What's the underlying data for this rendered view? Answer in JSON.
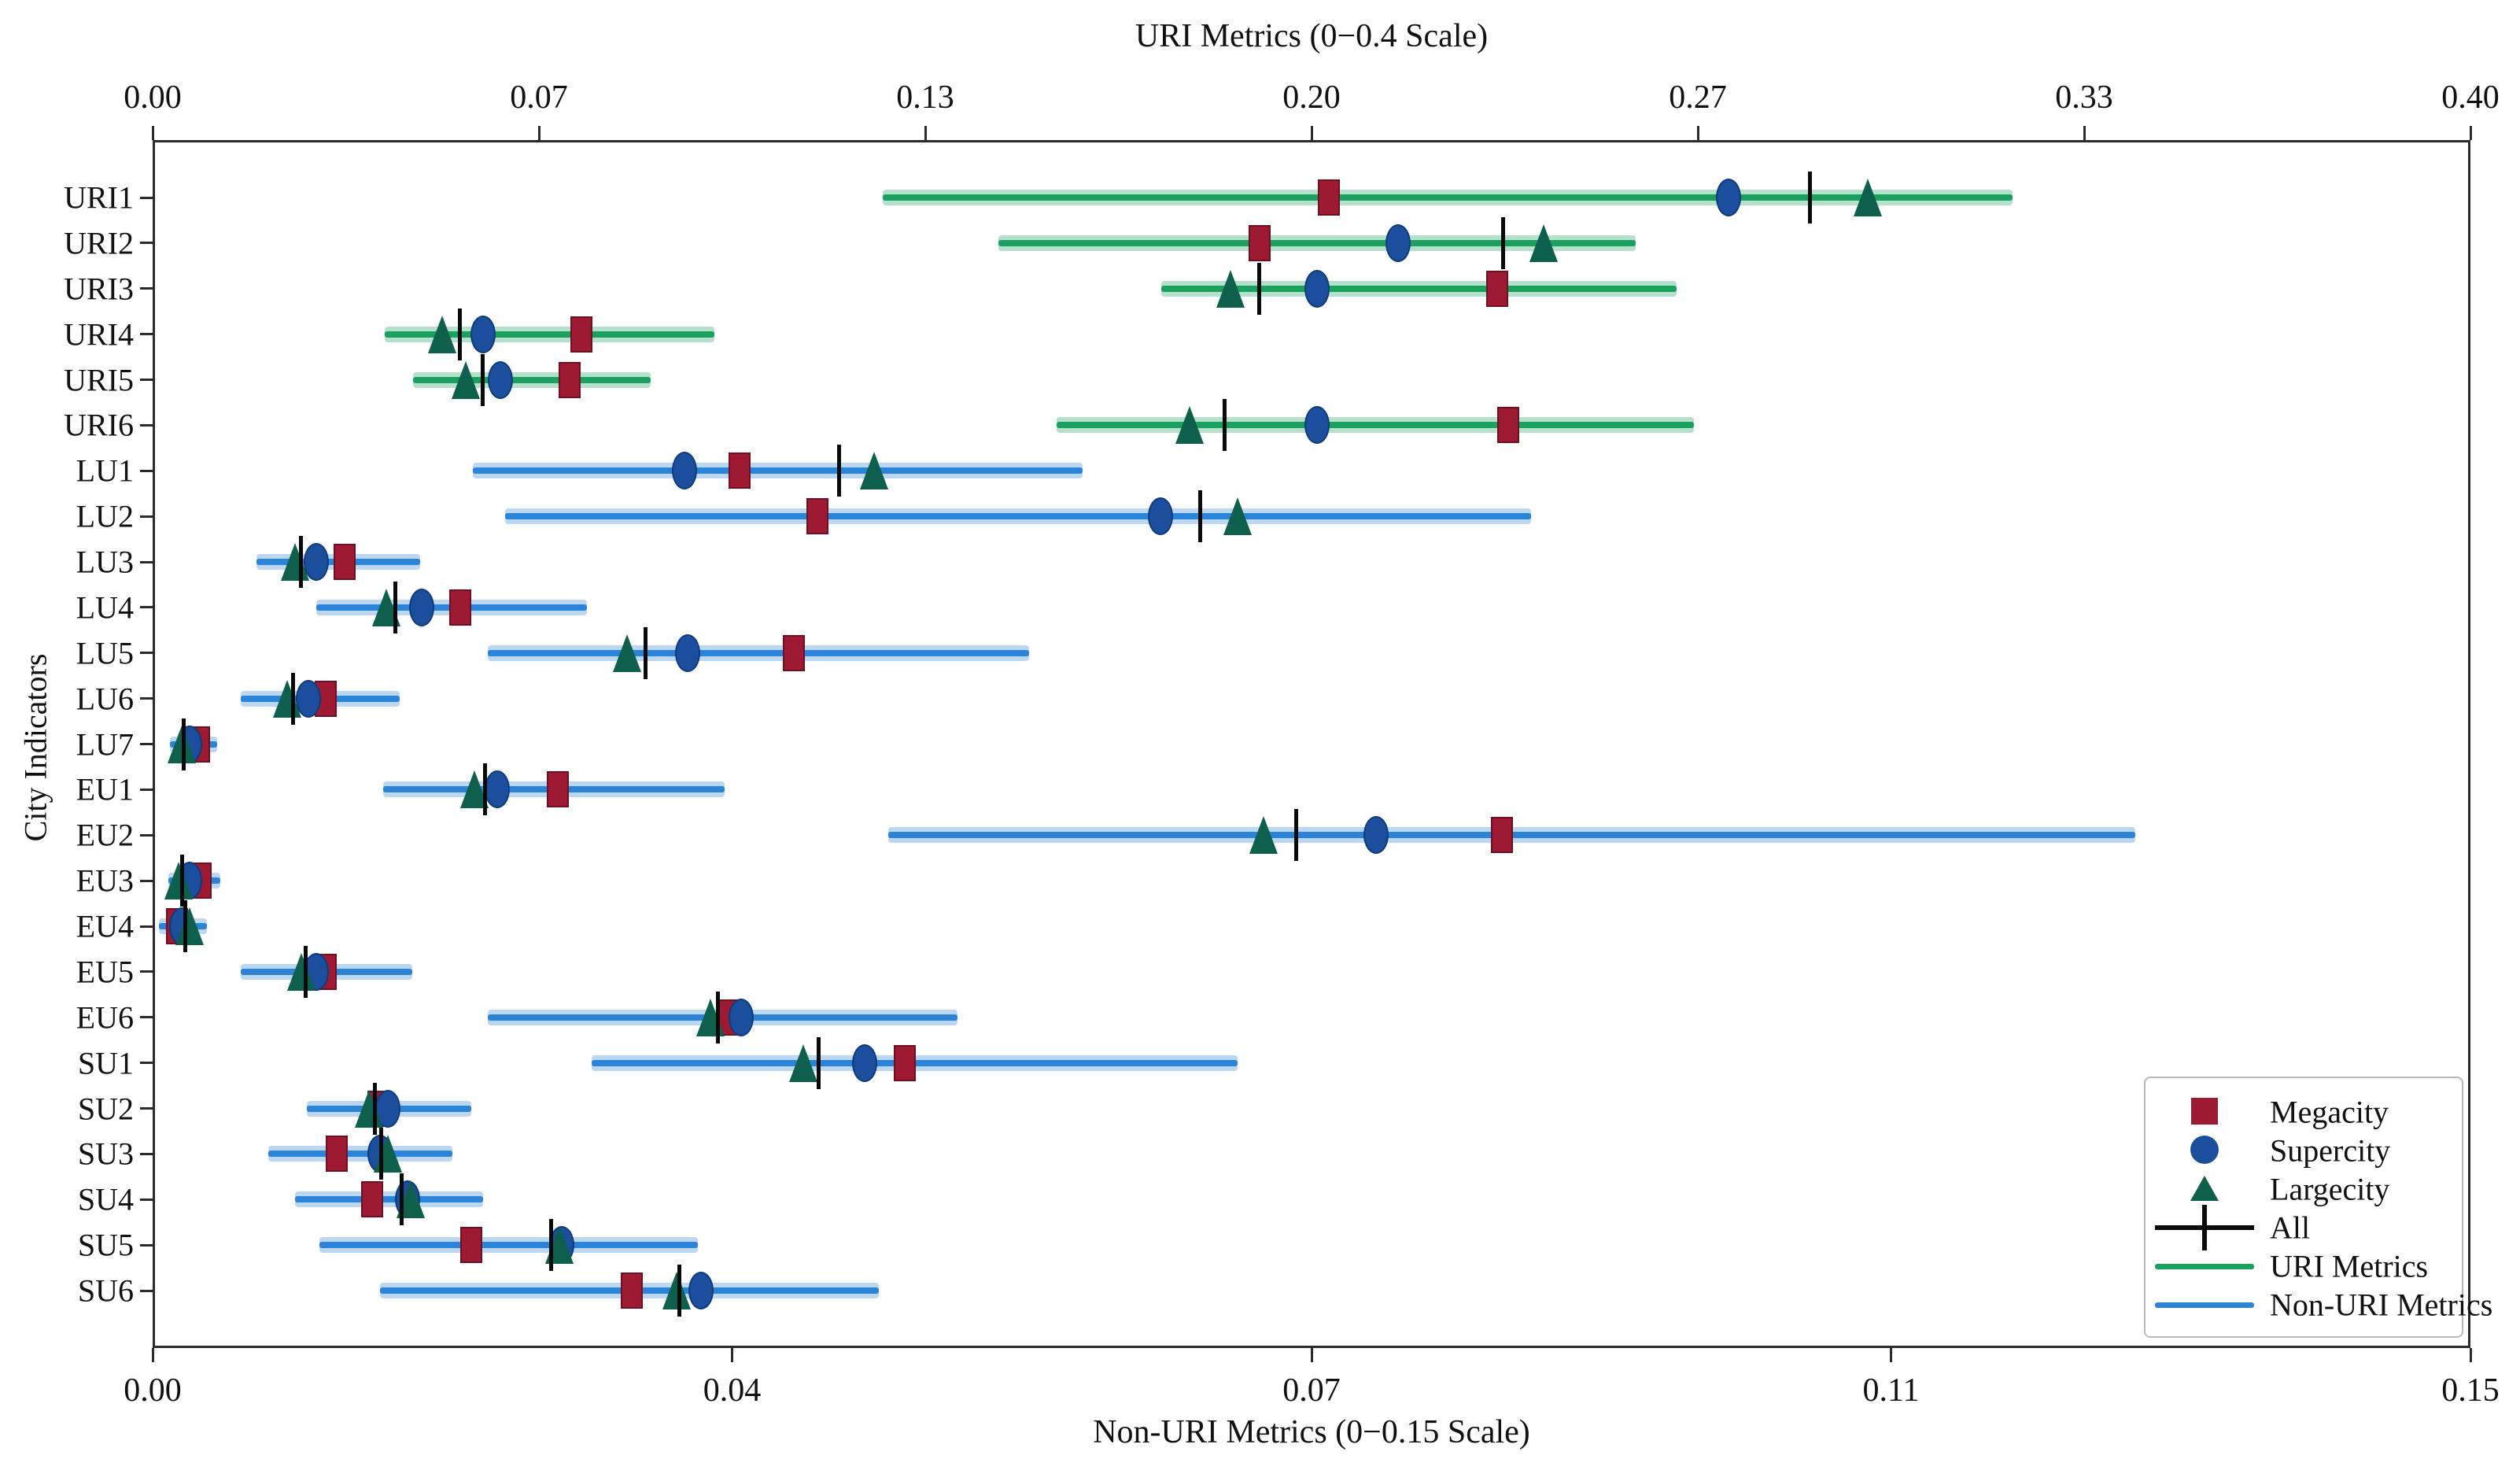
{
  "titles": {
    "top_axis_title": "URI Metrics (0−0.4 Scale)",
    "bottom_axis_title": "Non-URI Metrics (0−0.15 Scale)",
    "y_axis_title": "City Indicators"
  },
  "colors": {
    "megacity": "#9e1a33",
    "megacity_edge": "#6e0f22",
    "supercity": "#1b4f9e",
    "supercity_edge": "#103b7a",
    "largecity": "#0e5f4c",
    "all": "#0a0a0a",
    "uri_line": "#1aa15f",
    "nonuri_line": "#2b84d8",
    "spine": "#2b2b2b"
  },
  "legend": {
    "items": [
      {
        "label": "Megacity",
        "marker": "square",
        "color": "#9e1a33"
      },
      {
        "label": "Supercity",
        "marker": "circle",
        "color": "#1b4f9e"
      },
      {
        "label": "Largecity",
        "marker": "triangle",
        "color": "#0e5f4c"
      },
      {
        "label": "All",
        "marker": "plus",
        "color": "#0a0a0a"
      },
      {
        "label": "URI Metrics",
        "marker": "line",
        "color": "#1aa15f"
      },
      {
        "label": "Non-URI Metrics",
        "marker": "line",
        "color": "#2b84d8"
      }
    ]
  },
  "chart_data": {
    "type": "scatter",
    "subtype": "dot-plot-with-ranges",
    "title": "URI Metrics (0−0.4 Scale)",
    "xlabel": "Non-URI Metrics (0−0.15 Scale)",
    "ylabel": "City Indicators",
    "top_axis": {
      "ticks": [
        "0.00",
        "0.07",
        "0.13",
        "0.20",
        "0.27",
        "0.33",
        "0.40"
      ],
      "range": [
        0,
        0.4
      ]
    },
    "bottom_axis": {
      "ticks": [
        "0.00",
        "0.04",
        "0.07",
        "0.11",
        "0.15"
      ],
      "range": [
        0,
        0.15
      ]
    },
    "legend_entries": [
      "Megacity",
      "Supercity",
      "Largecity",
      "All",
      "URI Metrics",
      "Non-URI Metrics"
    ],
    "legend_position": "lower right",
    "grid": false,
    "rows": [
      {
        "label": "URI1",
        "scale": "uri",
        "range": [
          0.126,
          0.321
        ],
        "megacity": 0.203,
        "supercity": 0.272,
        "largecity": 0.296,
        "all": 0.286
      },
      {
        "label": "URI2",
        "scale": "uri",
        "range": [
          0.146,
          0.256
        ],
        "megacity": 0.191,
        "supercity": 0.215,
        "largecity": 0.24,
        "all": 0.233
      },
      {
        "label": "URI3",
        "scale": "uri",
        "range": [
          0.174,
          0.263
        ],
        "megacity": 0.232,
        "supercity": 0.201,
        "largecity": 0.186,
        "all": 0.191
      },
      {
        "label": "URI4",
        "scale": "uri",
        "range": [
          0.04,
          0.097
        ],
        "megacity": 0.074,
        "supercity": 0.057,
        "largecity": 0.05,
        "all": 0.053
      },
      {
        "label": "URI5",
        "scale": "uri",
        "range": [
          0.045,
          0.086
        ],
        "megacity": 0.072,
        "supercity": 0.06,
        "largecity": 0.054,
        "all": 0.057
      },
      {
        "label": "URI6",
        "scale": "uri",
        "range": [
          0.156,
          0.266
        ],
        "megacity": 0.234,
        "supercity": 0.201,
        "largecity": 0.179,
        "all": 0.185
      },
      {
        "label": "LU1",
        "scale": "nonuri",
        "range": [
          0.0207,
          0.0602
        ],
        "megacity": 0.038,
        "supercity": 0.0344,
        "largecity": 0.0467,
        "all": 0.0444
      },
      {
        "label": "LU2",
        "scale": "nonuri",
        "range": [
          0.0228,
          0.0892
        ],
        "megacity": 0.043,
        "supercity": 0.0652,
        "largecity": 0.0702,
        "all": 0.0678
      },
      {
        "label": "LU3",
        "scale": "nonuri",
        "range": [
          0.0067,
          0.0173
        ],
        "megacity": 0.0124,
        "supercity": 0.0106,
        "largecity": 0.0092,
        "all": 0.0096
      },
      {
        "label": "LU4",
        "scale": "nonuri",
        "range": [
          0.0106,
          0.0281
        ],
        "megacity": 0.0199,
        "supercity": 0.0174,
        "largecity": 0.0151,
        "all": 0.0157
      },
      {
        "label": "LU5",
        "scale": "nonuri",
        "range": [
          0.0217,
          0.0567
        ],
        "megacity": 0.0415,
        "supercity": 0.0346,
        "largecity": 0.0307,
        "all": 0.0319
      },
      {
        "label": "LU6",
        "scale": "nonuri",
        "range": [
          0.0057,
          0.016
        ],
        "megacity": 0.0112,
        "supercity": 0.0101,
        "largecity": 0.0087,
        "all": 0.0091
      },
      {
        "label": "LU7",
        "scale": "nonuri",
        "range": [
          0.0011,
          0.0042
        ],
        "megacity": 0.003,
        "supercity": 0.0024,
        "largecity": 0.0019,
        "all": 0.002
      },
      {
        "label": "EU1",
        "scale": "nonuri",
        "range": [
          0.0149,
          0.037
        ],
        "megacity": 0.0262,
        "supercity": 0.0223,
        "largecity": 0.0208,
        "all": 0.0215
      },
      {
        "label": "EU2",
        "scale": "nonuri",
        "range": [
          0.0476,
          0.1283
        ],
        "megacity": 0.0873,
        "supercity": 0.0792,
        "largecity": 0.0719,
        "all": 0.074
      },
      {
        "label": "EU3",
        "scale": "nonuri",
        "range": [
          0.001,
          0.0044
        ],
        "megacity": 0.0031,
        "supercity": 0.0024,
        "largecity": 0.0017,
        "all": 0.0019
      },
      {
        "label": "EU4",
        "scale": "nonuri",
        "range": [
          0.0004,
          0.0035
        ],
        "megacity": 0.0016,
        "supercity": 0.0019,
        "largecity": 0.0024,
        "all": 0.0021
      },
      {
        "label": "EU5",
        "scale": "nonuri",
        "range": [
          0.0057,
          0.0168
        ],
        "megacity": 0.0112,
        "supercity": 0.0106,
        "largecity": 0.0096,
        "all": 0.0099
      },
      {
        "label": "EU6",
        "scale": "nonuri",
        "range": [
          0.0217,
          0.0521
        ],
        "megacity": 0.0372,
        "supercity": 0.0381,
        "largecity": 0.0361,
        "all": 0.0366
      },
      {
        "label": "SU1",
        "scale": "nonuri",
        "range": [
          0.0284,
          0.0702
        ],
        "megacity": 0.0487,
        "supercity": 0.0461,
        "largecity": 0.0421,
        "all": 0.0431
      },
      {
        "label": "SU2",
        "scale": "nonuri",
        "range": [
          0.01,
          0.0206
        ],
        "megacity": 0.0146,
        "supercity": 0.0152,
        "largecity": 0.014,
        "all": 0.0144
      },
      {
        "label": "SU3",
        "scale": "nonuri",
        "range": [
          0.0075,
          0.0194
        ],
        "megacity": 0.0119,
        "supercity": 0.0147,
        "largecity": 0.0152,
        "all": 0.0148
      },
      {
        "label": "SU4",
        "scale": "nonuri",
        "range": [
          0.0092,
          0.0214
        ],
        "megacity": 0.0142,
        "supercity": 0.0165,
        "largecity": 0.0167,
        "all": 0.0161
      },
      {
        "label": "SU5",
        "scale": "nonuri",
        "range": [
          0.0108,
          0.0353
        ],
        "megacity": 0.0206,
        "supercity": 0.0265,
        "largecity": 0.0263,
        "all": 0.0258
      },
      {
        "label": "SU6",
        "scale": "nonuri",
        "range": [
          0.0147,
          0.047
        ],
        "megacity": 0.031,
        "supercity": 0.0355,
        "largecity": 0.0339,
        "all": 0.0341
      }
    ]
  },
  "layout_note_values_visible_only": true
}
